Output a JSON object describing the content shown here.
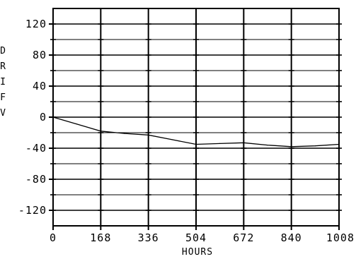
{
  "chart_data": {
    "type": "line",
    "title": "",
    "xlabel": "HOURS",
    "ylabel_visible_glyphs": [
      "D",
      "R",
      "I",
      "F",
      "V"
    ],
    "x_ticks": [
      0,
      168,
      336,
      504,
      672,
      840,
      1008
    ],
    "x_tick_labels": [
      "0",
      "168",
      "336",
      "504",
      "672",
      "840",
      "1008"
    ],
    "y_ticks": [
      120,
      80,
      40,
      0,
      -40,
      -80,
      -120
    ],
    "y_tick_labels": [
      "120",
      "80",
      "40",
      "0",
      "-40",
      "-80",
      "-120"
    ],
    "xlim": [
      0,
      1008
    ],
    "ylim": [
      -140,
      140
    ],
    "grid": true,
    "grid_minor_y_step": 20,
    "series": [
      {
        "x": [
          0,
          84,
          168,
          252,
          336,
          420,
          504,
          588,
          672,
          756,
          840,
          924,
          1008
        ],
        "values": [
          0,
          -9,
          -18,
          -21,
          -23,
          -29,
          -35,
          -34,
          -33,
          -36,
          -38,
          -37,
          -35
        ]
      }
    ],
    "line_color": "#000000",
    "background_color": "#ffffff"
  }
}
